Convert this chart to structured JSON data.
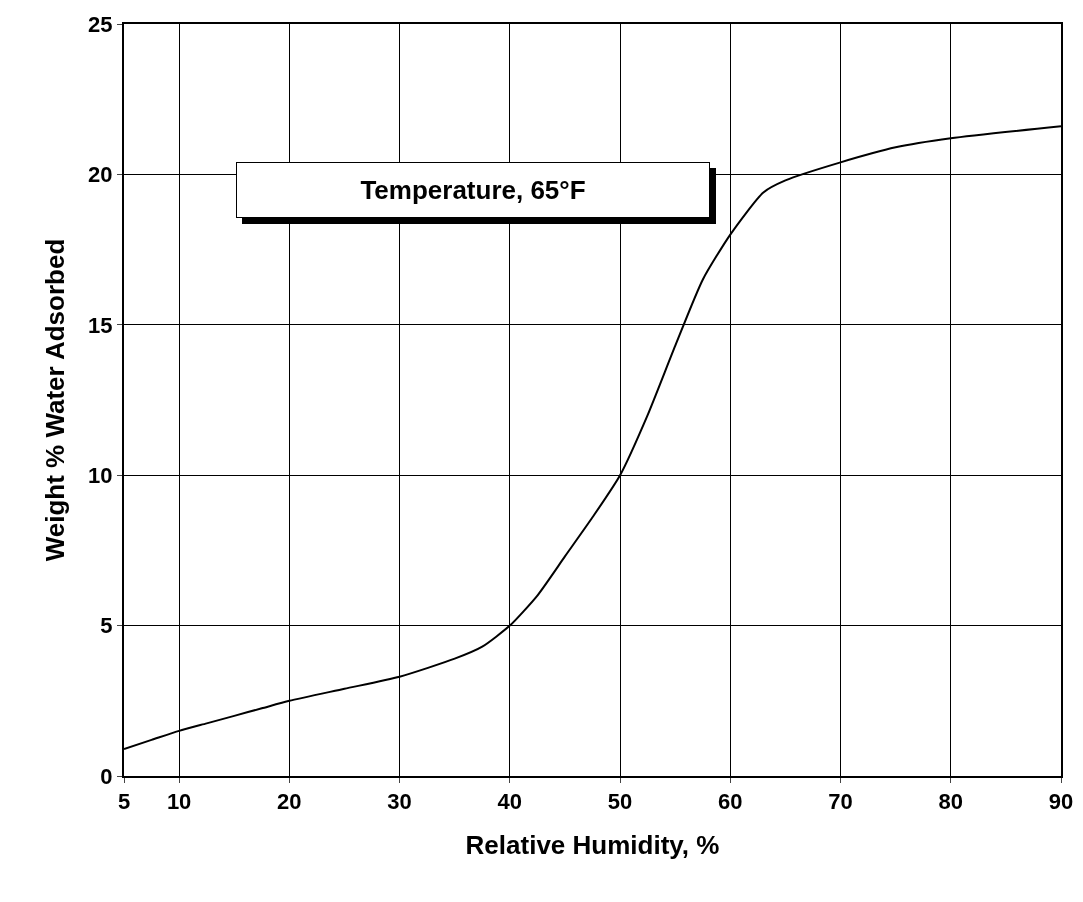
{
  "chart_data": {
    "type": "line",
    "xlabel": "Relative Humidity, %",
    "ylabel": "Weight % Water Adsorbed",
    "annotations": [
      "Temperature, 65°F"
    ],
    "x": [
      5,
      7.5,
      10,
      12.5,
      15,
      17.5,
      20,
      25,
      30,
      35,
      37.5,
      40,
      42.5,
      45,
      47.5,
      50,
      52.5,
      55,
      57.5,
      60,
      63,
      65,
      70,
      75,
      80,
      90
    ],
    "series": [
      {
        "color": "#000000",
        "values": [
          0.9,
          1.2,
          1.5,
          1.75,
          2.0,
          2.25,
          2.5,
          2.9,
          3.3,
          3.9,
          4.3,
          5.0,
          6.0,
          7.3,
          8.6,
          10.0,
          12.0,
          14.3,
          16.5,
          18.0,
          19.4,
          19.8,
          20.4,
          20.9,
          21.2,
          21.6
        ]
      }
    ],
    "xlim": [
      5,
      90
    ],
    "xticks": [
      5,
      10,
      20,
      30,
      40,
      50,
      60,
      70,
      80,
      90
    ],
    "ylim": [
      0,
      25
    ],
    "yticks": [
      0,
      5,
      10,
      15,
      20,
      25
    ],
    "grid": true,
    "marker": "none",
    "line_style": "solid"
  }
}
